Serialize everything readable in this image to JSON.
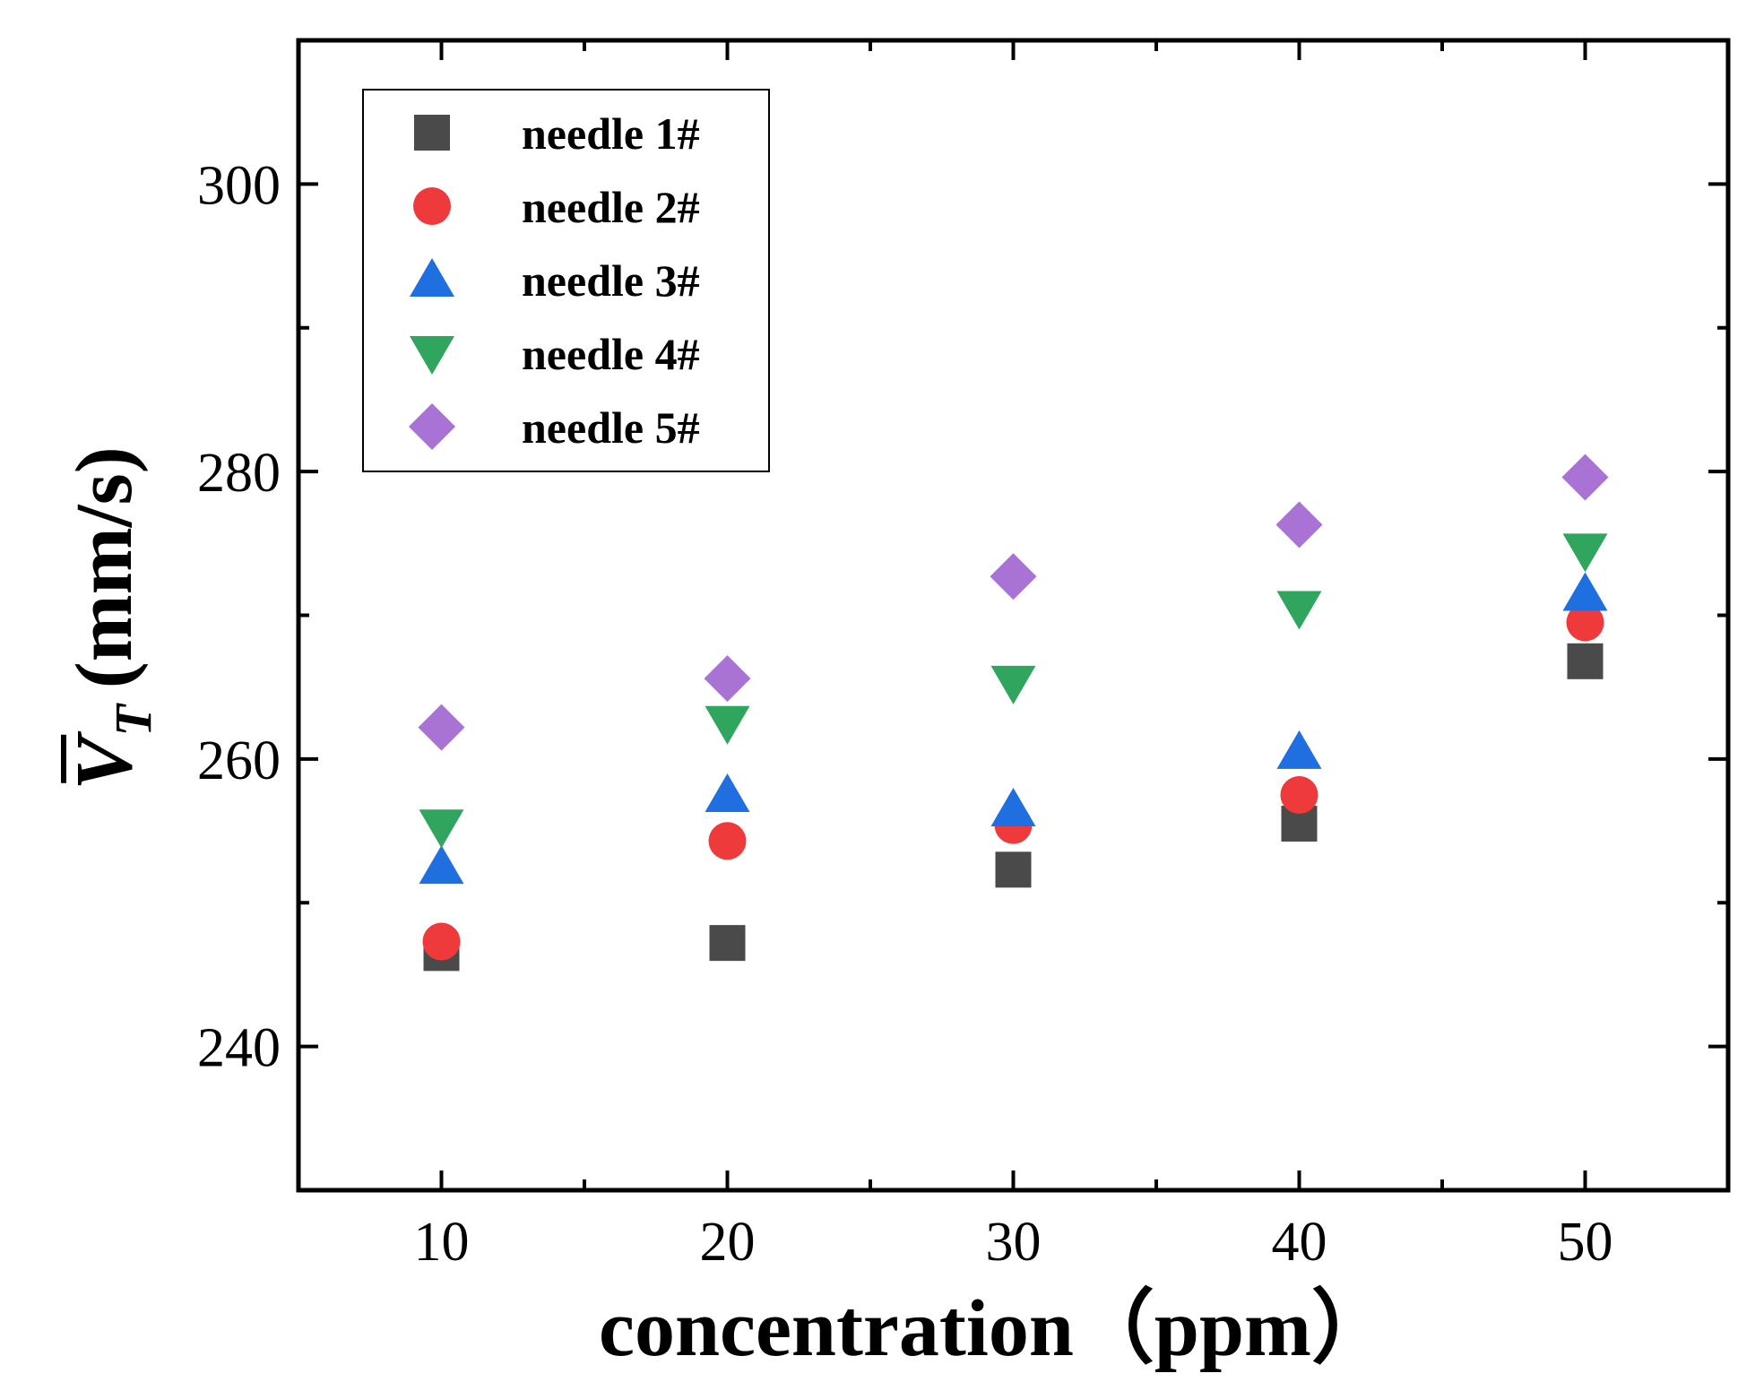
{
  "chart_data": {
    "type": "scatter",
    "title": "",
    "xlabel": "concentration（ppm）",
    "ylabel_symbol": "V",
    "ylabel_subscript": "T",
    "ylabel_units": "(mm/s)",
    "x": [
      10,
      20,
      30,
      40,
      50
    ],
    "xlim": [
      5,
      55
    ],
    "ylim": [
      230,
      310
    ],
    "xticks": [
      10,
      20,
      30,
      40,
      50
    ],
    "xtick_labels": [
      "10",
      "20",
      "30",
      "40",
      "50"
    ],
    "xminor": [
      15,
      25,
      35,
      45
    ],
    "yticks": [
      240,
      260,
      280,
      300
    ],
    "ytick_labels": [
      "240",
      "260",
      "280",
      "300"
    ],
    "yminor": [
      250,
      270,
      290
    ],
    "legend_position": "top-left",
    "series": [
      {
        "name": "needle 1#",
        "marker": "square",
        "color": "#4a4a4a",
        "values": [
          246.5,
          247.2,
          252.3,
          255.5,
          266.8
        ]
      },
      {
        "name": "needle 2#",
        "marker": "circle",
        "color": "#ee3a3a",
        "values": [
          247.3,
          254.3,
          255.4,
          257.5,
          269.5
        ]
      },
      {
        "name": "needle 3#",
        "marker": "triangle",
        "color": "#1f6fe0",
        "values": [
          252.5,
          257.5,
          256.5,
          260.5,
          271.5
        ]
      },
      {
        "name": "needle 4#",
        "marker": "triangle-down",
        "color": "#2fa55d",
        "values": [
          255.3,
          262.5,
          265.3,
          270.5,
          274.5
        ]
      },
      {
        "name": "needle 5#",
        "marker": "diamond",
        "color": "#a973d6",
        "values": [
          262.2,
          265.6,
          272.7,
          276.3,
          279.6
        ]
      }
    ]
  }
}
